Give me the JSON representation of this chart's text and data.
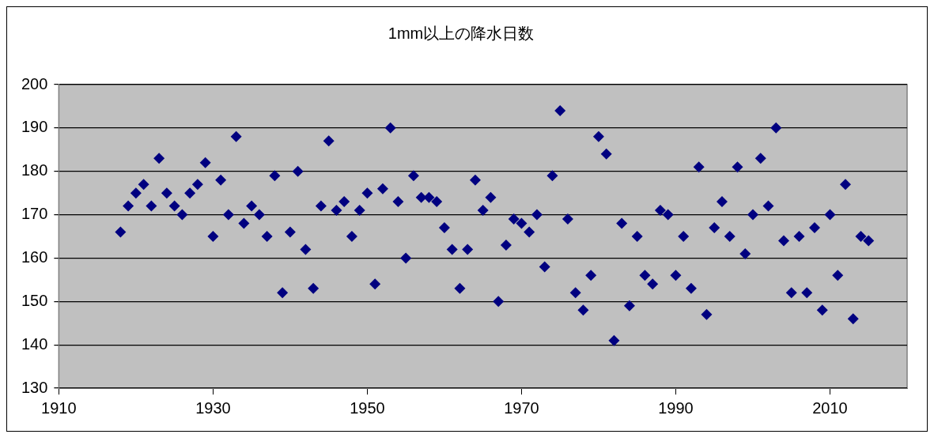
{
  "chart_data": {
    "type": "scatter",
    "title": "1mm以上の降水日数",
    "x": [
      1918,
      1919,
      1920,
      1921,
      1922,
      1923,
      1924,
      1925,
      1926,
      1927,
      1928,
      1929,
      1930,
      1931,
      1932,
      1933,
      1934,
      1935,
      1936,
      1937,
      1938,
      1939,
      1940,
      1941,
      1942,
      1943,
      1944,
      1945,
      1946,
      1947,
      1948,
      1949,
      1950,
      1951,
      1952,
      1953,
      1954,
      1955,
      1956,
      1957,
      1958,
      1959,
      1960,
      1961,
      1962,
      1963,
      1964,
      1965,
      1966,
      1967,
      1968,
      1969,
      1970,
      1971,
      1972,
      1973,
      1974,
      1975,
      1976,
      1977,
      1978,
      1979,
      1980,
      1981,
      1982,
      1983,
      1984,
      1985,
      1986,
      1987,
      1988,
      1989,
      1990,
      1991,
      1992,
      1993,
      1994,
      1995,
      1996,
      1997,
      1998,
      1999,
      2000,
      2001,
      2002,
      2003,
      2004,
      2005,
      2006,
      2007,
      2008,
      2009,
      2010,
      2011,
      2012,
      2013,
      2014,
      2015
    ],
    "series": [
      {
        "color": "#000080",
        "values": [
          166,
          172,
          175,
          177,
          172,
          183,
          175,
          172,
          170,
          175,
          177,
          182,
          165,
          178,
          170,
          188,
          168,
          172,
          170,
          165,
          179,
          152,
          166,
          180,
          162,
          153,
          172,
          187,
          171,
          173,
          165,
          171,
          175,
          154,
          176,
          190,
          173,
          160,
          179,
          174,
          174,
          173,
          167,
          162,
          153,
          162,
          178,
          171,
          174,
          150,
          163,
          169,
          168,
          166,
          170,
          158,
          179,
          194,
          169,
          152,
          148,
          156,
          188,
          184,
          141,
          168,
          149,
          165,
          156,
          154,
          171,
          170,
          156,
          165,
          153,
          181,
          147,
          167,
          173,
          165,
          181,
          161,
          170,
          183,
          172,
          190,
          164,
          152,
          165,
          152,
          167,
          148,
          170,
          156,
          177,
          146,
          165,
          164
        ]
      }
    ],
    "xlim": [
      1910,
      2020
    ],
    "xticks": [
      1910,
      1930,
      1950,
      1970,
      1990,
      2010
    ],
    "ylim": [
      130,
      200
    ],
    "yticks": [
      130,
      140,
      150,
      160,
      170,
      180,
      190,
      200
    ],
    "grid": "y",
    "legend": false,
    "marker": "diamond"
  }
}
